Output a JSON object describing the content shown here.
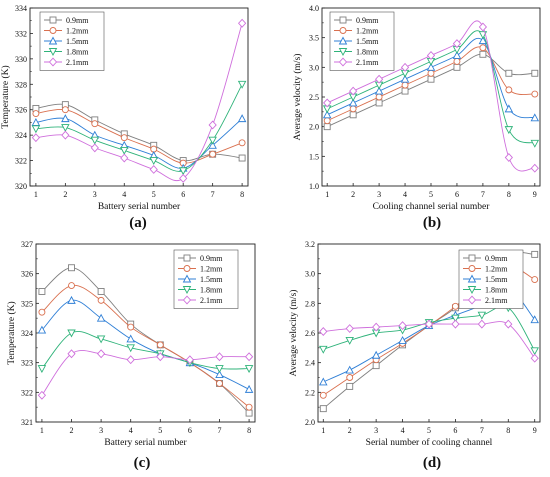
{
  "chart_data": [
    {
      "type": "line",
      "caption": "(a)",
      "xlabel": "Battery serial number",
      "ylabel": "Temperature (K)",
      "xlim": [
        0.8,
        8.2
      ],
      "ylim": [
        320,
        334
      ],
      "xticks": [
        1,
        2,
        3,
        4,
        5,
        6,
        7,
        8
      ],
      "yticks": [
        320,
        322,
        324,
        326,
        328,
        330,
        332,
        334
      ],
      "legend_position": "top-left",
      "x": [
        1,
        2,
        3,
        4,
        5,
        6,
        7,
        8
      ],
      "series": [
        {
          "name": "0.9mm",
          "color": "#808080",
          "marker": "square",
          "values": [
            326.1,
            326.4,
            325.2,
            324.1,
            323.2,
            322.0,
            322.5,
            322.2
          ]
        },
        {
          "name": "1.2mm",
          "color": "#d9704f",
          "marker": "circle",
          "values": [
            325.7,
            326.0,
            324.9,
            323.8,
            322.9,
            321.8,
            322.5,
            323.4
          ]
        },
        {
          "name": "1.5mm",
          "color": "#2f7fd6",
          "marker": "triangle-up",
          "values": [
            325.0,
            325.3,
            324.0,
            323.2,
            322.4,
            321.4,
            323.2,
            325.3
          ]
        },
        {
          "name": "1.8mm",
          "color": "#2fb37a",
          "marker": "triangle-down",
          "values": [
            324.5,
            324.6,
            323.6,
            322.8,
            322.0,
            321.2,
            323.6,
            328.0
          ]
        },
        {
          "name": "2.1mm",
          "color": "#cf6fdc",
          "marker": "diamond",
          "values": [
            323.8,
            324.0,
            323.0,
            322.2,
            321.3,
            320.6,
            324.8,
            332.8
          ]
        }
      ]
    },
    {
      "type": "line",
      "caption": "(b)",
      "xlabel": "Cooling channel serial number",
      "ylabel": "Average velocity (m/s)",
      "xlim": [
        0.8,
        9.2
      ],
      "ylim": [
        1.0,
        4.0
      ],
      "xticks": [
        1,
        2,
        3,
        4,
        5,
        6,
        7,
        8,
        9
      ],
      "yticks": [
        1.0,
        1.5,
        2.0,
        2.5,
        3.0,
        3.5,
        4.0
      ],
      "yticklabels": [
        "1.0",
        "1.5",
        "2.0",
        "2.5",
        "3.0",
        "3.5",
        "4.0"
      ],
      "legend_position": "top-left",
      "x": [
        1,
        2,
        3,
        4,
        5,
        6,
        7,
        8,
        9
      ],
      "series": [
        {
          "name": "0.9mm",
          "color": "#808080",
          "marker": "square",
          "values": [
            2.0,
            2.2,
            2.4,
            2.6,
            2.8,
            3.0,
            3.22,
            2.9,
            2.9
          ]
        },
        {
          "name": "1.2mm",
          "color": "#d9704f",
          "marker": "circle",
          "values": [
            2.1,
            2.3,
            2.5,
            2.7,
            2.9,
            3.1,
            3.33,
            2.62,
            2.55
          ]
        },
        {
          "name": "1.5mm",
          "color": "#2f7fd6",
          "marker": "triangle-up",
          "values": [
            2.2,
            2.4,
            2.6,
            2.8,
            3.0,
            3.2,
            3.45,
            2.3,
            2.15
          ]
        },
        {
          "name": "1.8mm",
          "color": "#2fb37a",
          "marker": "triangle-down",
          "values": [
            2.3,
            2.5,
            2.7,
            2.9,
            3.1,
            3.3,
            3.55,
            1.95,
            1.72
          ]
        },
        {
          "name": "2.1mm",
          "color": "#cf6fdc",
          "marker": "diamond",
          "values": [
            2.4,
            2.6,
            2.8,
            3.0,
            3.2,
            3.4,
            3.68,
            1.48,
            1.3
          ]
        }
      ]
    },
    {
      "type": "line",
      "caption": "(c)",
      "xlabel": "Battery serial number",
      "ylabel": "Temperature (K)",
      "xlim": [
        0.8,
        8.2
      ],
      "ylim": [
        321,
        327
      ],
      "xticks": [
        1,
        2,
        3,
        4,
        5,
        6,
        7,
        8
      ],
      "yticks": [
        321,
        322,
        323,
        324,
        325,
        326,
        327
      ],
      "legend_position": "top-right",
      "x": [
        1,
        2,
        3,
        4,
        5,
        6,
        7,
        8
      ],
      "series": [
        {
          "name": "0.9mm",
          "color": "#808080",
          "marker": "square",
          "values": [
            325.4,
            326.2,
            325.4,
            324.3,
            323.6,
            323.0,
            322.3,
            321.3
          ]
        },
        {
          "name": "1.2mm",
          "color": "#d9704f",
          "marker": "circle",
          "values": [
            324.7,
            325.6,
            325.1,
            324.2,
            323.6,
            323.0,
            322.3,
            321.5
          ]
        },
        {
          "name": "1.5mm",
          "color": "#2f7fd6",
          "marker": "triangle-up",
          "values": [
            324.1,
            325.1,
            324.5,
            323.8,
            323.3,
            323.0,
            322.6,
            322.1
          ]
        },
        {
          "name": "1.8mm",
          "color": "#2fb37a",
          "marker": "triangle-down",
          "values": [
            322.8,
            324.0,
            323.8,
            323.5,
            323.3,
            323.0,
            322.8,
            322.8
          ]
        },
        {
          "name": "2.1mm",
          "color": "#cf6fdc",
          "marker": "diamond",
          "values": [
            321.9,
            323.3,
            323.3,
            323.1,
            323.2,
            323.1,
            323.2,
            323.2
          ]
        }
      ]
    },
    {
      "type": "line",
      "caption": "(d)",
      "xlabel": "Serial number of cooling channel",
      "ylabel": "Average velocity (m/s)",
      "xlim": [
        0.8,
        9.2
      ],
      "ylim": [
        2.0,
        3.2
      ],
      "xticks": [
        1,
        2,
        3,
        4,
        5,
        6,
        7,
        8,
        9
      ],
      "yticks": [
        2.0,
        2.2,
        2.4,
        2.6,
        2.8,
        3.0,
        3.2
      ],
      "yticklabels": [
        "2.0",
        "2.2",
        "2.4",
        "2.6",
        "2.8",
        "3.0",
        "3.2"
      ],
      "legend_position": "top-right",
      "x": [
        1,
        2,
        3,
        4,
        5,
        6,
        7,
        8,
        9
      ],
      "series": [
        {
          "name": "0.9mm",
          "color": "#808080",
          "marker": "square",
          "values": [
            2.09,
            2.24,
            2.38,
            2.52,
            2.65,
            2.77,
            2.94,
            3.13,
            3.13
          ]
        },
        {
          "name": "1.2mm",
          "color": "#d9704f",
          "marker": "circle",
          "values": [
            2.18,
            2.3,
            2.42,
            2.53,
            2.65,
            2.78,
            2.93,
            3.05,
            2.96
          ]
        },
        {
          "name": "1.5mm",
          "color": "#2f7fd6",
          "marker": "triangle-up",
          "values": [
            2.27,
            2.35,
            2.45,
            2.55,
            2.65,
            2.72,
            2.79,
            2.9,
            2.69
          ]
        },
        {
          "name": "1.8mm",
          "color": "#2fb37a",
          "marker": "triangle-down",
          "values": [
            2.49,
            2.55,
            2.6,
            2.62,
            2.67,
            2.7,
            2.72,
            2.77,
            2.48
          ]
        },
        {
          "name": "2.1mm",
          "color": "#cf6fdc",
          "marker": "diamond",
          "values": [
            2.61,
            2.63,
            2.64,
            2.65,
            2.66,
            2.66,
            2.66,
            2.66,
            2.43
          ]
        }
      ]
    }
  ]
}
